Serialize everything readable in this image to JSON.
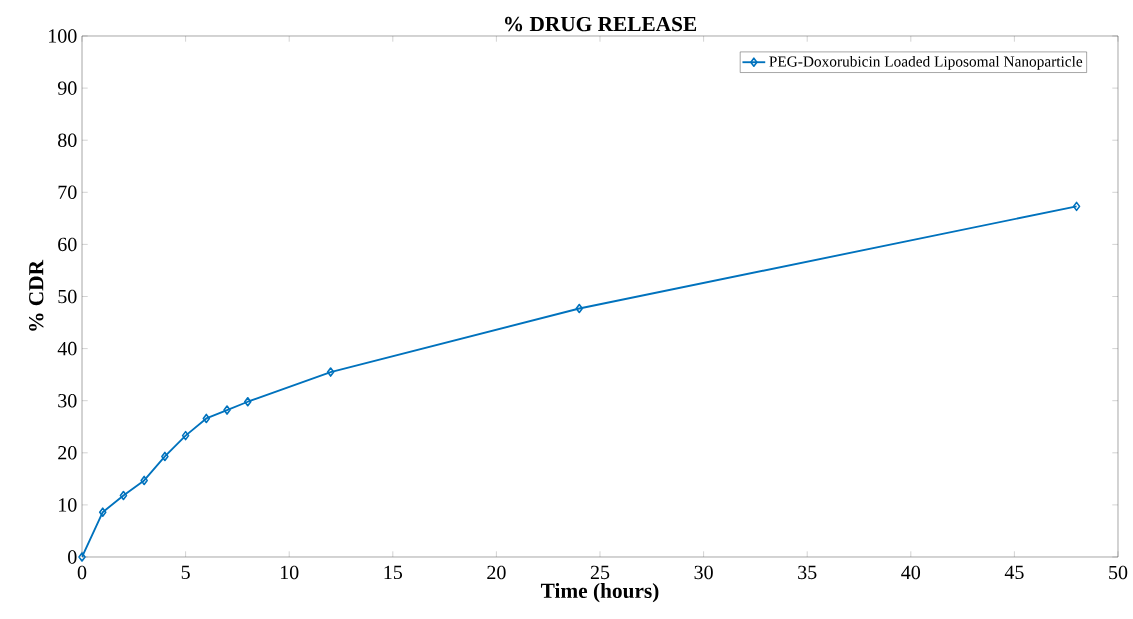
{
  "chart_data": {
    "type": "line",
    "title": "% DRUG RELEASE",
    "xlabel": "Time (hours)",
    "ylabel": "% CDR",
    "x": [
      0,
      1,
      2,
      3,
      4,
      5,
      6,
      7,
      8,
      12,
      24,
      48
    ],
    "series": [
      {
        "name": "PEG-Doxorubicin Loaded Liposomal Nanoparticle",
        "color": "#0072bd",
        "values": [
          0,
          8.6,
          11.8,
          14.7,
          19.3,
          23.3,
          26.6,
          28.2,
          29.8,
          35.5,
          47.7,
          67.3
        ]
      }
    ],
    "xlim": [
      0,
      50
    ],
    "ylim": [
      0,
      100
    ],
    "xticks": [
      0,
      5,
      10,
      15,
      20,
      25,
      30,
      35,
      40,
      45,
      50
    ],
    "yticks": [
      0,
      10,
      20,
      30,
      40,
      50,
      60,
      70,
      80,
      90,
      100
    ],
    "grid": false,
    "legend": "top right",
    "marker": "diamond",
    "line_style": "solid"
  }
}
